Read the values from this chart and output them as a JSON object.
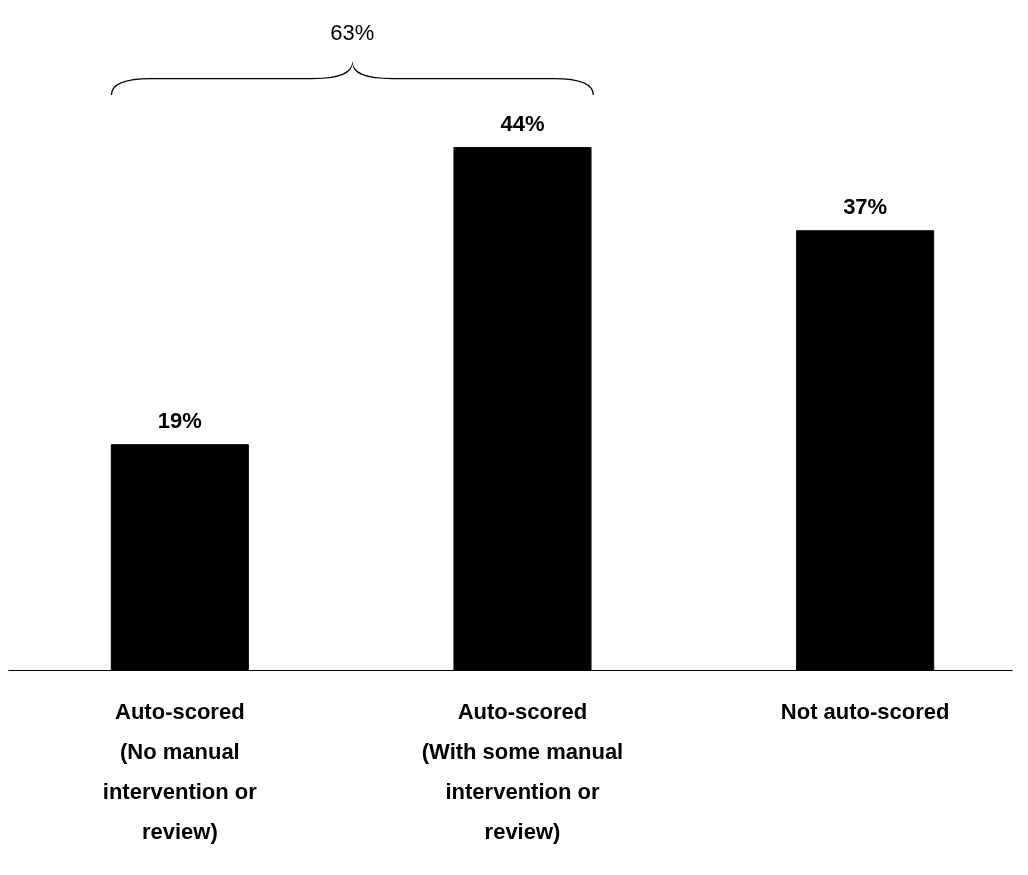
{
  "chart_data": {
    "type": "bar",
    "categories": [
      "Auto-scored\n(No manual\nintervention or\nreview)",
      "Auto-scored\n(With some manual\nintervention or\nreview)",
      "Not auto-scored"
    ],
    "values": [
      19,
      44,
      37
    ],
    "color": "#000000",
    "data_labels": true,
    "value_labels": [
      "19%",
      "44%",
      "37%"
    ],
    "annotations": [
      "63%"
    ],
    "grid": false
  }
}
